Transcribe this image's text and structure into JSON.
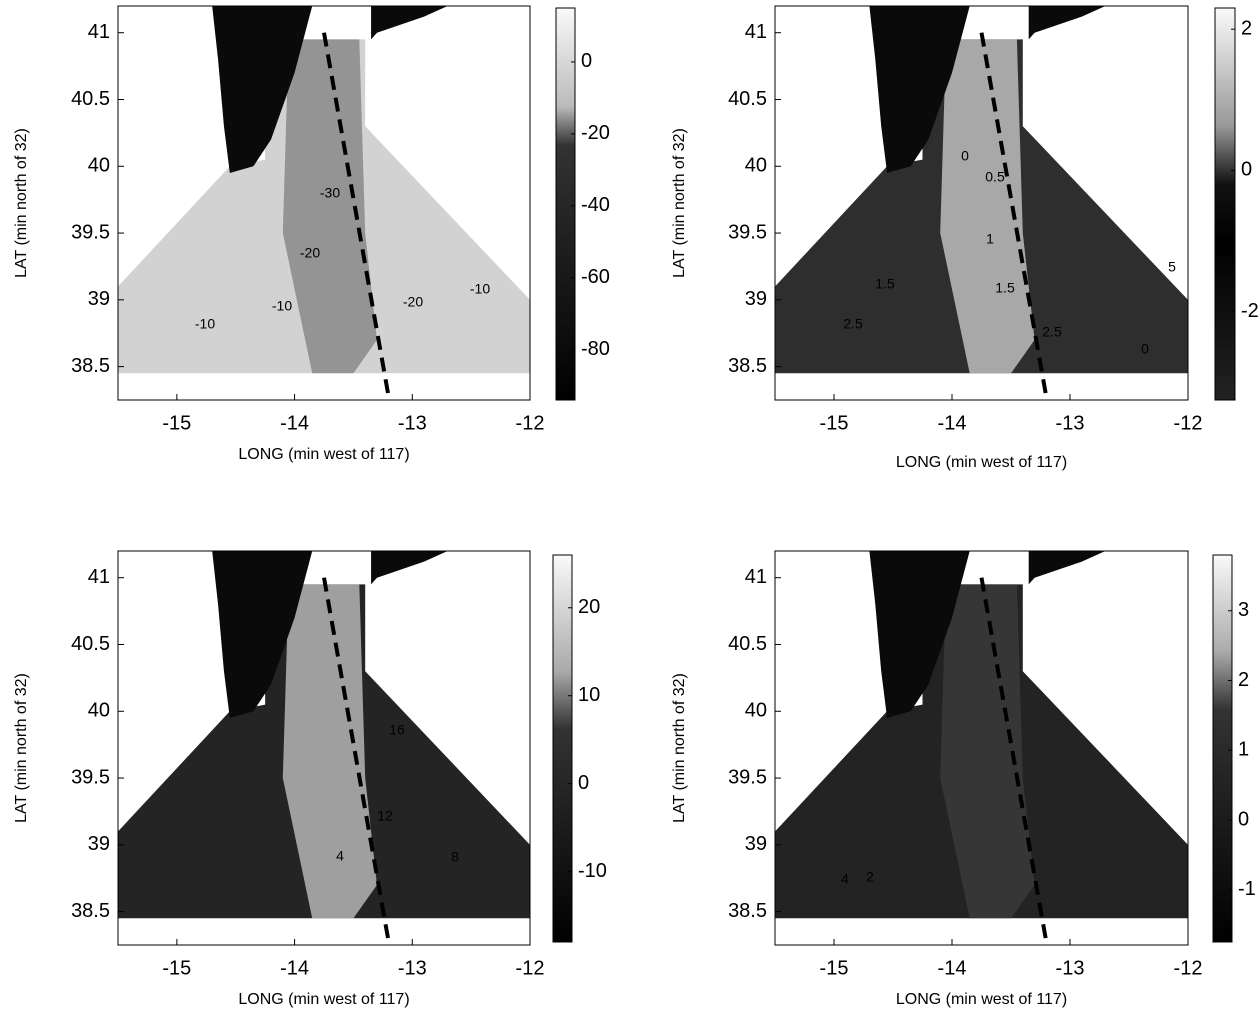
{
  "chart_data": [
    {
      "type": "contour",
      "xlabel": "LONG (min west of 117)",
      "ylabel": "LAT (min north of 32)",
      "xlim": [
        -15.5,
        -12
      ],
      "ylim": [
        38.25,
        41.2
      ],
      "xticks": [
        -15,
        -14,
        -13,
        -12
      ],
      "yticks": [
        38.5,
        39,
        39.5,
        40,
        40.5,
        41
      ],
      "colorbar": {
        "clim": [
          -94,
          15
        ],
        "ticks": [
          0,
          -20,
          -40,
          -60,
          -80
        ]
      },
      "annotations": [
        "-10",
        "-10",
        "-20",
        "-20",
        "-10",
        "-30"
      ]
    },
    {
      "type": "contour",
      "xlabel": "LONG (min west of 117)",
      "ylabel": "LAT (min north of 32)",
      "xlim": [
        -15.5,
        -12
      ],
      "ylim": [
        38.25,
        41.2
      ],
      "xticks": [
        -15,
        -14,
        -13,
        -12
      ],
      "yticks": [
        38.5,
        39,
        39.5,
        40,
        40.5,
        41
      ],
      "colorbar": {
        "clim": [
          -3.25,
          2.3
        ],
        "ticks": [
          2,
          0,
          -2
        ]
      },
      "annotations": [
        "0",
        "0.5",
        "1",
        "1.5",
        "1.5",
        "2.5",
        "2.5",
        "0",
        "5"
      ]
    },
    {
      "type": "contour",
      "xlabel": "LONG (min west of 117)",
      "ylabel": "LAT (min north of 32)",
      "xlim": [
        -15.5,
        -12
      ],
      "ylim": [
        38.25,
        41.2
      ],
      "xticks": [
        -15,
        -14,
        -13,
        -12
      ],
      "yticks": [
        38.5,
        39,
        39.5,
        40,
        40.5,
        41
      ],
      "colorbar": {
        "clim": [
          -18,
          26
        ],
        "ticks": [
          20,
          10,
          0,
          -10
        ]
      },
      "annotations": [
        "16",
        "12",
        "8",
        "4"
      ]
    },
    {
      "type": "contour",
      "xlabel": "LONG (min west of 117)",
      "ylabel": "LAT (min north of 32)",
      "xlim": [
        -15.5,
        -12
      ],
      "ylim": [
        38.25,
        41.2
      ],
      "xticks": [
        -15,
        -14,
        -13,
        -12
      ],
      "yticks": [
        38.5,
        39,
        39.5,
        40,
        40.5,
        41
      ],
      "colorbar": {
        "clim": [
          -1.75,
          3.8
        ],
        "ticks": [
          3,
          2,
          1,
          0,
          -1
        ]
      },
      "annotations": [
        "4",
        "2"
      ]
    }
  ]
}
